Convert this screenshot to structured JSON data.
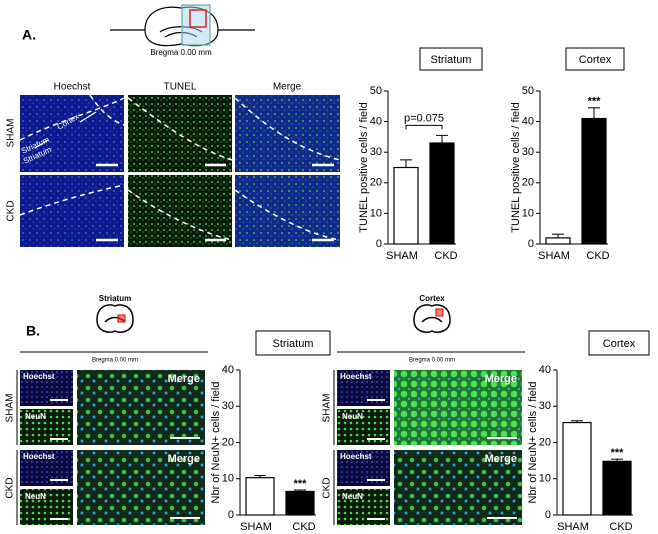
{
  "panel_a": {
    "label": "A.",
    "bregma": "Bregma 0.00 mm",
    "columns": [
      "Hoechst",
      "TUNEL",
      "Merge"
    ],
    "rows": [
      "SHAM",
      "CKD"
    ],
    "regions": [
      "Cortex",
      "Striatum",
      "Striatum"
    ]
  },
  "panel_b": {
    "label": "B.",
    "left": {
      "title": "Striatum",
      "bregma": "Bregma 0.00 mm",
      "rows": [
        "SHAM",
        "CKD"
      ],
      "small": [
        "Hoechst",
        "NeuN"
      ],
      "merge": "Merge"
    },
    "right": {
      "title": "Cortex",
      "bregma": "Bregma 0.00 mm",
      "rows": [
        "SHAM",
        "CKD"
      ],
      "small": [
        "Hoechst",
        "NeuN"
      ],
      "merge": "Merge"
    }
  },
  "chart_data": [
    {
      "type": "bar",
      "title": "Striatum",
      "ylabel": "TUNEL positive cells / field",
      "categories": [
        "SHAM",
        "CKD"
      ],
      "values": [
        25,
        33
      ],
      "errors": [
        2.5,
        2.5
      ],
      "colors": [
        "#ffffff",
        "#000000"
      ],
      "ylim": [
        0,
        50
      ],
      "yticks": [
        0,
        10,
        20,
        30,
        40,
        50
      ],
      "annotation": "p=0.075"
    },
    {
      "type": "bar",
      "title": "Cortex",
      "ylabel": "TUNEL positive cells / field",
      "categories": [
        "SHAM",
        "CKD"
      ],
      "values": [
        2,
        41
      ],
      "errors": [
        1.2,
        3.5
      ],
      "colors": [
        "#ffffff",
        "#000000"
      ],
      "ylim": [
        0,
        50
      ],
      "yticks": [
        0,
        10,
        20,
        30,
        40,
        50
      ],
      "annotation": "***"
    },
    {
      "type": "bar",
      "title": "Striatum",
      "ylabel": "Nbr of NeuN+ cells / field",
      "categories": [
        "SHAM",
        "CKD"
      ],
      "values": [
        10.3,
        6.5
      ],
      "errors": [
        0.6,
        0.4
      ],
      "colors": [
        "#ffffff",
        "#000000"
      ],
      "ylim": [
        0,
        40
      ],
      "yticks": [
        0,
        10,
        20,
        30,
        40
      ],
      "annotation": "***"
    },
    {
      "type": "bar",
      "title": "Cortex",
      "ylabel": "Nbr of NeuN+ cells / field",
      "categories": [
        "SHAM",
        "CKD"
      ],
      "values": [
        25.5,
        14.8
      ],
      "errors": [
        0.5,
        0.6
      ],
      "colors": [
        "#ffffff",
        "#000000"
      ],
      "ylim": [
        0,
        40
      ],
      "yticks": [
        0,
        10,
        20,
        30,
        40
      ],
      "annotation": "***"
    }
  ]
}
